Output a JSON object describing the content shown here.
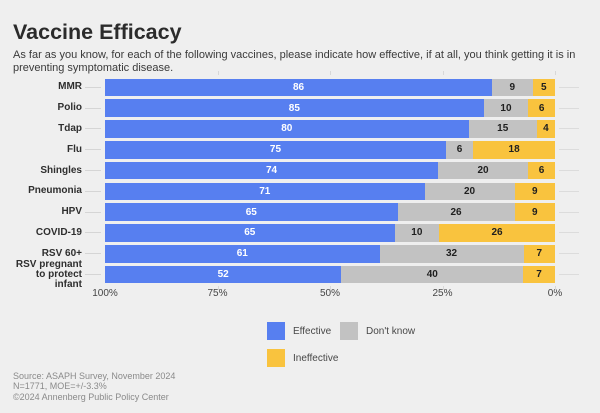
{
  "title": "Vaccine Efficacy",
  "subtitle": "As far as you know, for each of the following vaccines, please indicate how effective, if at all, you think getting it is in preventing symptomatic disease.",
  "chart_data": {
    "type": "bar",
    "stacked": true,
    "orientation": "horizontal",
    "axis_reversed": true,
    "grid": "off",
    "legend_position": "bottom",
    "categories": [
      {
        "label": "MMR",
        "lines": [
          "MMR"
        ]
      },
      {
        "label": "Polio",
        "lines": [
          "Polio"
        ]
      },
      {
        "label": "Tdap",
        "lines": [
          "Tdap"
        ]
      },
      {
        "label": "Flu",
        "lines": [
          "Flu"
        ]
      },
      {
        "label": "Shingles",
        "lines": [
          "Shingles"
        ]
      },
      {
        "label": "Pneumonia",
        "lines": [
          "Pneumonia"
        ]
      },
      {
        "label": "HPV",
        "lines": [
          "HPV"
        ]
      },
      {
        "label": "COVID-19",
        "lines": [
          "COVID-19"
        ]
      },
      {
        "label": "RSV 60+",
        "lines": [
          "RSV 60+"
        ]
      },
      {
        "label": "RSV pregnant to protect infant",
        "lines": [
          "RSV pregnant",
          "to protect",
          "infant"
        ]
      }
    ],
    "series": [
      {
        "name": "Effective",
        "color": "#577ff0",
        "label_color": "#ffffff",
        "values": [
          86,
          85,
          80,
          75,
          74,
          71,
          65,
          65,
          61,
          52
        ]
      },
      {
        "name": "Don't know",
        "color": "#c2c2c2",
        "label_color": "#1f1f1f",
        "values": [
          9,
          10,
          15,
          6,
          20,
          20,
          26,
          10,
          32,
          40
        ]
      },
      {
        "name": "Ineffective",
        "color": "#f9c33e",
        "label_color": "#1f1f1f",
        "values": [
          5,
          6,
          4,
          18,
          6,
          9,
          9,
          26,
          7,
          7
        ]
      }
    ],
    "x_ticks": [
      "100%",
      "75%",
      "50%",
      "25%",
      "0%"
    ],
    "xlim": [
      100,
      0
    ]
  },
  "source_lines": [
    "Source: ASAPH Survey, November 2024",
    "N=1771, MOE=+/-3.3%",
    "©2024 Annenberg Public Policy Center"
  ]
}
